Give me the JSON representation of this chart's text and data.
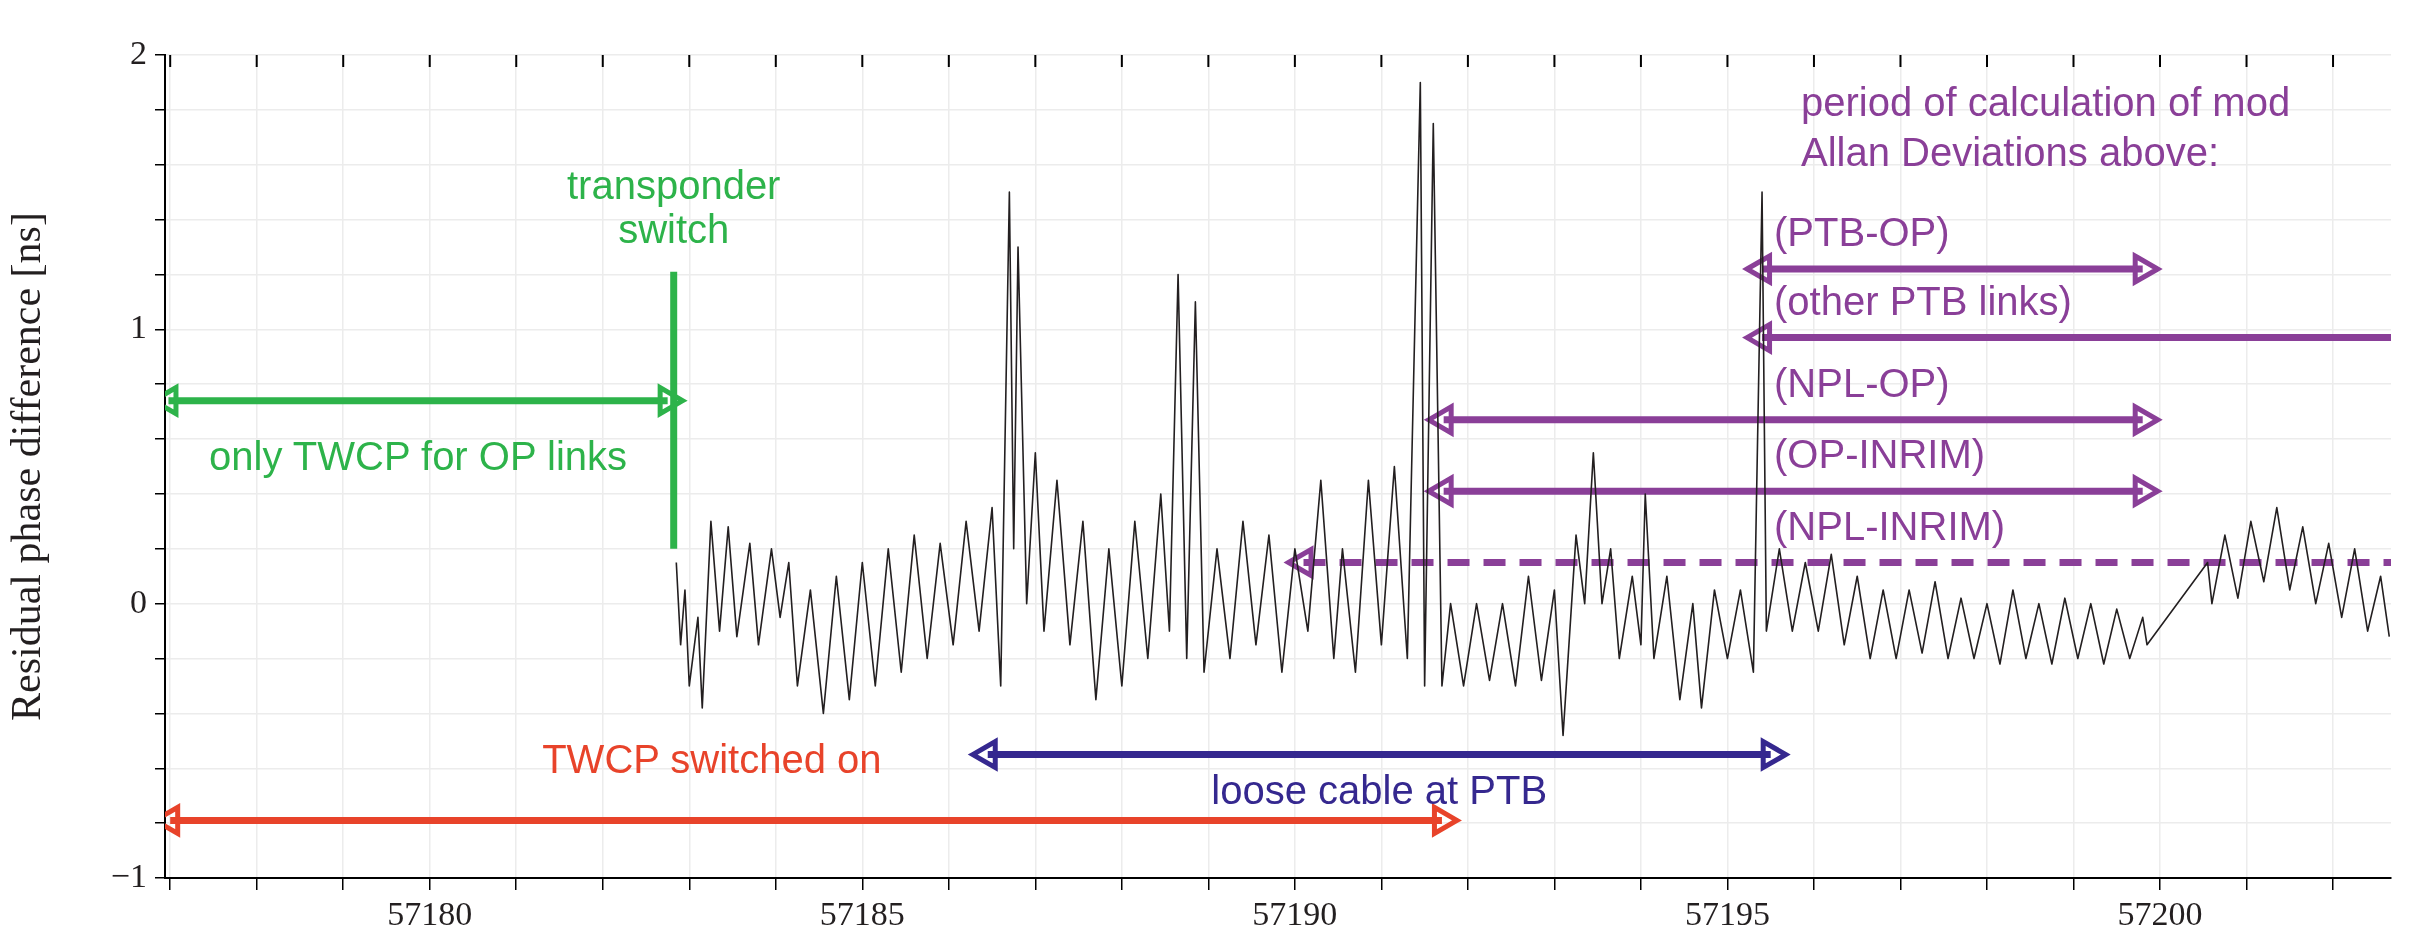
{
  "chart_data": {
    "type": "line",
    "ylabel": "Residual phase difference [ns]",
    "xlim": [
      57176.94,
      57202.67
    ],
    "ylim": [
      -1,
      2
    ],
    "xticks": [
      {
        "value": 57177,
        "label": null
      },
      {
        "value": 57178,
        "label": null
      },
      {
        "value": 57179,
        "label": null
      },
      57180,
      {
        "value": 57181,
        "label": null
      },
      {
        "value": 57182,
        "label": null
      },
      {
        "value": 57183,
        "label": null
      },
      {
        "value": 57184,
        "label": null
      },
      57185,
      {
        "value": 57186,
        "label": null
      },
      {
        "value": 57187,
        "label": null
      },
      {
        "value": 57188,
        "label": null
      },
      {
        "value": 57189,
        "label": null
      },
      57190,
      {
        "value": 57191,
        "label": null
      },
      {
        "value": 57192,
        "label": null
      },
      {
        "value": 57193,
        "label": null
      },
      {
        "value": 57194,
        "label": null
      },
      57195,
      {
        "value": 57196,
        "label": null
      },
      {
        "value": 57197,
        "label": null
      },
      {
        "value": 57198,
        "label": null
      },
      {
        "value": 57199,
        "label": null
      },
      57200,
      {
        "value": 57201,
        "label": null
      },
      {
        "value": 57202,
        "label": null
      }
    ],
    "yticks": [
      {
        "value": -1,
        "label": "−1"
      },
      {
        "value": -0.8,
        "label": null
      },
      {
        "value": -0.6,
        "label": null
      },
      {
        "value": -0.4,
        "label": null
      },
      {
        "value": -0.2,
        "label": null
      },
      0,
      {
        "value": 0.2,
        "label": null
      },
      {
        "value": 0.4,
        "label": null
      },
      {
        "value": 0.6,
        "label": null
      },
      {
        "value": 0.8,
        "label": null
      },
      1,
      {
        "value": 1.2,
        "label": null
      },
      {
        "value": 1.4,
        "label": null
      },
      {
        "value": 1.6,
        "label": null
      },
      {
        "value": 1.8,
        "label": null
      },
      2
    ],
    "grid": true,
    "legend": false,
    "series": [
      {
        "color": "#231f20",
        "x": [
          57182.85,
          57182.9,
          57182.95,
          57183.0,
          57183.1,
          57183.15,
          57183.25,
          57183.35,
          57183.45,
          57183.55,
          57183.7,
          57183.8,
          57183.95,
          57184.05,
          57184.15,
          57184.25,
          57184.4,
          57184.55,
          57184.7,
          57184.85,
          57185.0,
          57185.15,
          57185.3,
          57185.45,
          57185.6,
          57185.75,
          57185.9,
          57186.05,
          57186.2,
          57186.35,
          57186.5,
          57186.6,
          57186.7,
          57186.75,
          57186.8,
          57186.9,
          57187.0,
          57187.1,
          57187.25,
          57187.4,
          57187.55,
          57187.7,
          57187.85,
          57188.0,
          57188.15,
          57188.3,
          57188.45,
          57188.55,
          57188.65,
          57188.75,
          57188.85,
          57188.95,
          57189.1,
          57189.25,
          57189.4,
          57189.55,
          57189.7,
          57189.85,
          57190.0,
          57190.15,
          57190.3,
          57190.45,
          57190.55,
          57190.7,
          57190.85,
          57191.0,
          57191.15,
          57191.3,
          57191.45,
          57191.5,
          57191.6,
          57191.7,
          57191.8,
          57191.95,
          57192.1,
          57192.25,
          57192.4,
          57192.55,
          57192.7,
          57192.85,
          57193.0,
          57193.1,
          57193.25,
          57193.35,
          57193.45,
          57193.55,
          57193.65,
          57193.75,
          57193.9,
          57194.0,
          57194.05,
          57194.15,
          57194.3,
          57194.45,
          57194.6,
          57194.7,
          57194.85,
          57195.0,
          57195.15,
          57195.3,
          57195.4,
          57195.45,
          57195.6,
          57195.75,
          57195.9,
          57196.05,
          57196.2,
          57196.35,
          57196.5,
          57196.65,
          57196.8,
          57196.95,
          57197.1,
          57197.25,
          57197.4,
          57197.55,
          57197.7,
          57197.85,
          57198.0,
          57198.15,
          57198.3,
          57198.45,
          57198.6,
          57198.75,
          57198.9,
          57199.05,
          57199.2,
          57199.35,
          57199.5,
          57199.65,
          57199.8,
          57199.85,
          57200.55,
          57200.6,
          57200.75,
          57200.9,
          57201.05,
          57201.2,
          57201.35,
          57201.5,
          57201.65,
          57201.8,
          57201.95,
          57202.1,
          57202.25,
          57202.4,
          57202.55,
          57202.65
        ],
        "values": [
          0.15,
          -0.15,
          0.05,
          -0.3,
          -0.05,
          -0.38,
          0.3,
          -0.1,
          0.28,
          -0.12,
          0.22,
          -0.15,
          0.2,
          -0.05,
          0.15,
          -0.3,
          0.05,
          -0.4,
          0.1,
          -0.35,
          0.15,
          -0.3,
          0.2,
          -0.25,
          0.25,
          -0.2,
          0.22,
          -0.15,
          0.3,
          -0.1,
          0.35,
          -0.3,
          1.5,
          0.2,
          1.3,
          0.0,
          0.55,
          -0.1,
          0.45,
          -0.15,
          0.3,
          -0.35,
          0.2,
          -0.3,
          0.3,
          -0.2,
          0.4,
          -0.1,
          1.2,
          -0.2,
          1.1,
          -0.25,
          0.2,
          -0.2,
          0.3,
          -0.15,
          0.25,
          -0.25,
          0.2,
          -0.1,
          0.45,
          -0.2,
          0.2,
          -0.25,
          0.45,
          -0.15,
          0.5,
          -0.2,
          1.9,
          -0.3,
          1.75,
          -0.3,
          0.0,
          -0.3,
          0.0,
          -0.28,
          0.0,
          -0.3,
          0.1,
          -0.28,
          0.05,
          -0.48,
          0.25,
          0.0,
          0.55,
          0.0,
          0.2,
          -0.2,
          0.1,
          -0.15,
          0.4,
          -0.2,
          0.1,
          -0.35,
          0.0,
          -0.38,
          0.05,
          -0.2,
          0.05,
          -0.25,
          1.5,
          -0.1,
          0.2,
          -0.1,
          0.15,
          -0.1,
          0.18,
          -0.15,
          0.1,
          -0.2,
          0.05,
          -0.2,
          0.05,
          -0.18,
          0.08,
          -0.2,
          0.02,
          -0.2,
          0.0,
          -0.22,
          0.05,
          -0.2,
          0.0,
          -0.22,
          0.02,
          -0.2,
          0.0,
          -0.22,
          -0.02,
          -0.2,
          -0.05,
          -0.15,
          0.15,
          0.0,
          0.25,
          0.02,
          0.3,
          0.08,
          0.35,
          0.05,
          0.28,
          0.0,
          0.22,
          -0.05,
          0.2,
          -0.1,
          0.1,
          -0.12
        ]
      },
      {
        "name": "transponder switch",
        "color": "#2db34a",
        "x": [
          57182.82,
          57182.82
        ],
        "values": [
          0.2,
          1.21
        ]
      },
      {
        "name": "only TWCP for OP links",
        "color": "#2db34a",
        "marker": "triangle",
        "x": [
          57176.98,
          57182.75
        ],
        "values": [
          0.74,
          0.74
        ]
      },
      {
        "name": "TWCP switched on",
        "color": "#e8432a",
        "marker": "triangle",
        "x": [
          57177.0,
          57191.7
        ],
        "values": [
          -0.79,
          -0.79
        ]
      },
      {
        "name": "loose cable at PTB",
        "color": "#35288f",
        "marker": "triangle",
        "x": [
          57186.45,
          57195.5
        ],
        "values": [
          -0.55,
          -0.55
        ]
      },
      {
        "name": "(PTB-OP)",
        "color": "#8a3f98",
        "marker": "triangle",
        "x": [
          57195.4,
          57199.8
        ],
        "values": [
          1.22,
          1.22
        ]
      },
      {
        "name": "(other PTB links)",
        "color": "#8a3f98",
        "marker": "triangle",
        "x": [
          57195.4,
          57202.67
        ],
        "values": [
          0.97,
          0.97
        ]
      },
      {
        "name": "(NPL-OP)",
        "color": "#8a3f98",
        "marker": "triangle",
        "x": [
          57191.72,
          57199.8
        ],
        "values": [
          0.67,
          0.67
        ]
      },
      {
        "name": "(OP-INRIM)",
        "color": "#8a3f98",
        "marker": "triangle",
        "x": [
          57191.72,
          57199.8
        ],
        "values": [
          0.41,
          0.41
        ]
      },
      {
        "name": "(NPL-INRIM)",
        "color": "#8a3f98",
        "marker": "triangle",
        "line_style": "dashed",
        "x": [
          57190.1,
          57202.67
        ],
        "values": [
          0.15,
          0.15
        ]
      }
    ],
    "annotations": [
      "period of calculation of mod",
      "Allan Deviations above:"
    ]
  }
}
